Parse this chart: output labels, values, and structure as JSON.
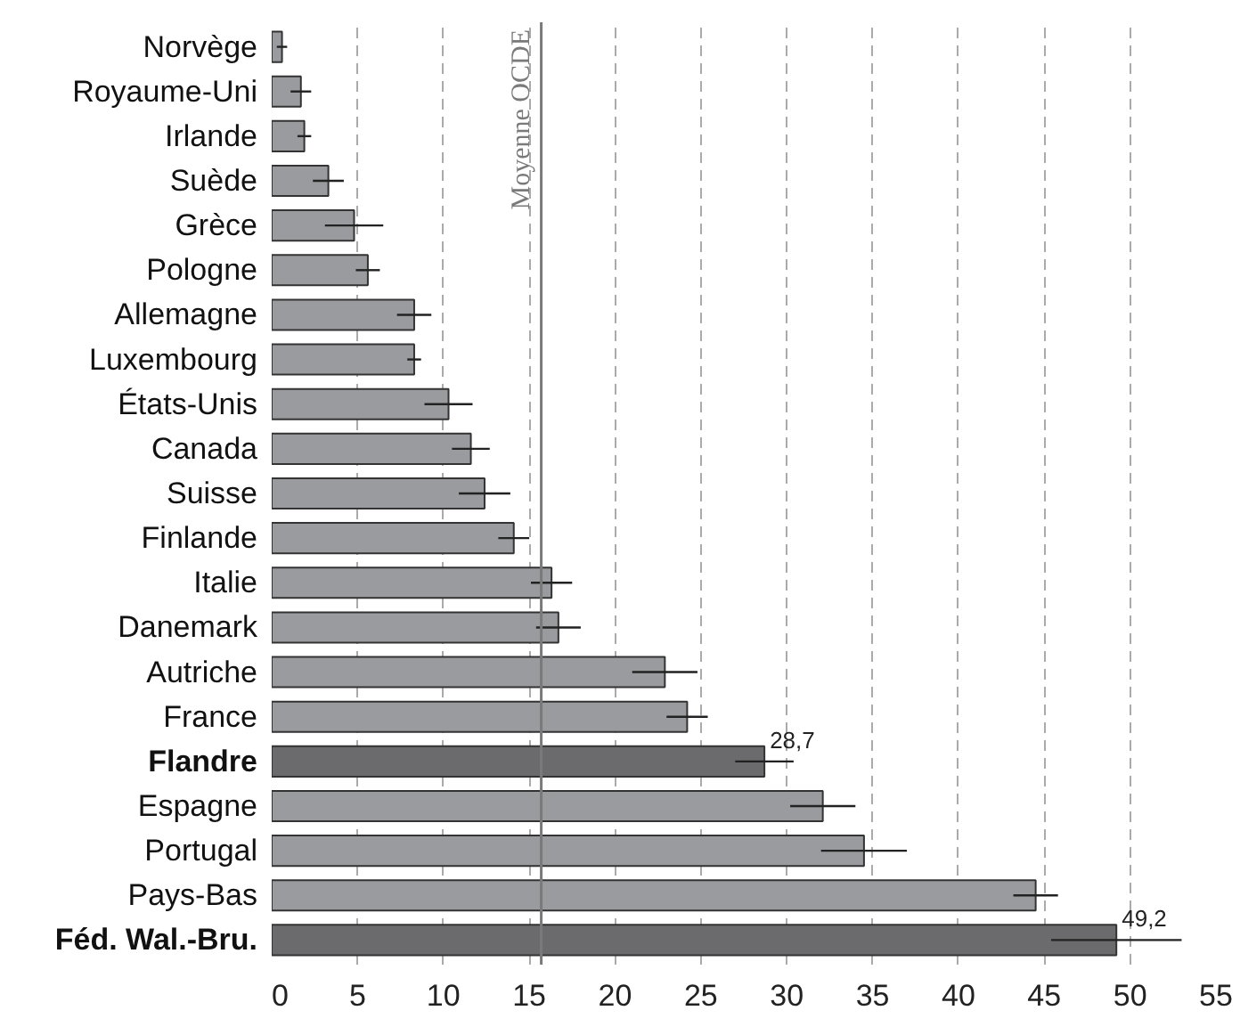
{
  "chart_data": {
    "type": "bar",
    "orientation": "horizontal",
    "categories": [
      "Norvège",
      "Royaume-Uni",
      "Irlande",
      "Suède",
      "Grèce",
      "Pologne",
      "Allemagne",
      "Luxembourg",
      "États-Unis",
      "Canada",
      "Suisse",
      "Finlande",
      "Italie",
      "Danemark",
      "Autriche",
      "France",
      "Flandre",
      "Espagne",
      "Portugal",
      "Pays-Bas",
      "Féd. Wal.-Bru."
    ],
    "values": [
      0.6,
      1.7,
      1.9,
      3.3,
      4.8,
      5.6,
      8.3,
      8.3,
      10.3,
      11.6,
      12.4,
      14.1,
      16.3,
      16.7,
      22.9,
      24.2,
      28.7,
      32.1,
      34.5,
      44.5,
      49.2
    ],
    "errors": [
      0.3,
      0.6,
      0.4,
      0.9,
      1.7,
      0.7,
      1.0,
      0.4,
      1.4,
      1.1,
      1.5,
      0.9,
      1.2,
      1.3,
      1.9,
      1.2,
      1.7,
      1.9,
      2.5,
      1.3,
      3.8
    ],
    "colors": [
      "#9a9b9e",
      "#9a9b9e",
      "#9a9b9e",
      "#9a9b9e",
      "#9a9b9e",
      "#9a9b9e",
      "#9a9b9e",
      "#9a9b9e",
      "#9a9b9e",
      "#9a9b9e",
      "#9a9b9e",
      "#9a9b9e",
      "#9a9b9e",
      "#9a9b9e",
      "#9a9b9e",
      "#9a9b9e",
      "#6b6b6d",
      "#9a9b9e",
      "#9a9b9e",
      "#9a9b9e",
      "#6b6b6d"
    ],
    "value_labels": [
      null,
      null,
      null,
      null,
      null,
      null,
      null,
      null,
      null,
      null,
      null,
      null,
      null,
      null,
      null,
      null,
      "28,7",
      null,
      null,
      null,
      "49,2"
    ],
    "xlim": [
      0,
      55
    ],
    "xticks": [
      0,
      5,
      10,
      15,
      20,
      25,
      30,
      35,
      40,
      45,
      50,
      55
    ],
    "grid": "x",
    "ref_lines": [
      {
        "axis": "x",
        "value": 15.7,
        "label": "Moyenne OCDE",
        "color": "#7a7a7a"
      }
    ]
  }
}
